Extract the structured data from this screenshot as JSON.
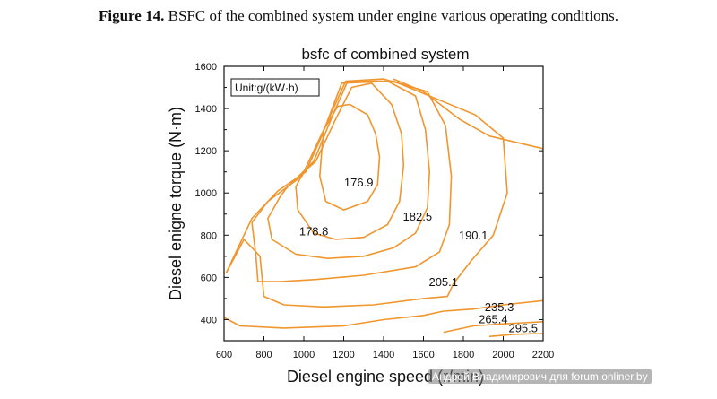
{
  "figure": {
    "caption_label": "Figure 14.",
    "caption_text": " BSFC of the combined system under engine various operating conditions."
  },
  "watermark": "Андрей Владимирович для forum.onliner.by",
  "chart_data": {
    "type": "contour",
    "title": "bsfc of combined system",
    "xlabel": "Diesel engine speed (r/min)",
    "ylabel": "Diesel enigne torque (N·m)",
    "unit_label": "Unit:g/(kW·h)",
    "xlim": [
      600,
      2200
    ],
    "ylim": [
      300,
      1600
    ],
    "xticks": [
      600,
      800,
      1000,
      1200,
      1400,
      1600,
      1800,
      2000,
      2200
    ],
    "yticks": [
      400,
      600,
      800,
      1000,
      1200,
      1400,
      1600
    ],
    "color": "#f0962e",
    "contours": [
      {
        "level": "176.9",
        "label_at": [
          1275,
          1030
        ],
        "points": [
          [
            1100,
            1300
          ],
          [
            1170,
            1410
          ],
          [
            1230,
            1420
          ],
          [
            1320,
            1370
          ],
          [
            1360,
            1280
          ],
          [
            1380,
            1170
          ],
          [
            1370,
            1040
          ],
          [
            1320,
            960
          ],
          [
            1200,
            920
          ],
          [
            1110,
            960
          ],
          [
            1080,
            1080
          ],
          [
            1090,
            1200
          ],
          [
            1100,
            1300
          ]
        ]
      },
      {
        "level": "178.8",
        "label_at": [
          1050,
          800
        ],
        "points": [
          [
            1060,
            1150
          ],
          [
            1160,
            1350
          ],
          [
            1240,
            1500
          ],
          [
            1340,
            1520
          ],
          [
            1440,
            1420
          ],
          [
            1490,
            1280
          ],
          [
            1500,
            1130
          ],
          [
            1480,
            960
          ],
          [
            1420,
            850
          ],
          [
            1300,
            790
          ],
          [
            1160,
            780
          ],
          [
            1050,
            810
          ],
          [
            970,
            920
          ],
          [
            960,
            1030
          ],
          [
            1000,
            1100
          ],
          [
            1060,
            1150
          ]
        ]
      },
      {
        "level": "182.5",
        "label_at": [
          1570,
          870
        ],
        "points": [
          [
            910,
            1020
          ],
          [
            1050,
            1150
          ],
          [
            1150,
            1380
          ],
          [
            1220,
            1530
          ],
          [
            1420,
            1530
          ],
          [
            1560,
            1460
          ],
          [
            1610,
            1300
          ],
          [
            1630,
            1100
          ],
          [
            1620,
            930
          ],
          [
            1560,
            810
          ],
          [
            1450,
            740
          ],
          [
            1300,
            700
          ],
          [
            1120,
            690
          ],
          [
            960,
            710
          ],
          [
            840,
            780
          ],
          [
            820,
            880
          ],
          [
            880,
            980
          ],
          [
            910,
            1020
          ]
        ]
      },
      {
        "level": "190.1",
        "label_at": [
          1850,
          780
        ],
        "points": [
          [
            820,
            960
          ],
          [
            990,
            1080
          ],
          [
            1110,
            1320
          ],
          [
            1210,
            1530
          ],
          [
            1400,
            1540
          ],
          [
            1620,
            1480
          ],
          [
            1710,
            1320
          ],
          [
            1740,
            1080
          ],
          [
            1730,
            850
          ],
          [
            1680,
            720
          ],
          [
            1560,
            650
          ],
          [
            1300,
            610
          ],
          [
            1060,
            590
          ],
          [
            880,
            580
          ],
          [
            770,
            580
          ],
          [
            760,
            700
          ],
          [
            740,
            860
          ],
          [
            820,
            960
          ]
        ]
      },
      {
        "level": "205.1",
        "label_at": [
          1700,
          560
        ],
        "points": [
          [
            610,
            620
          ],
          [
            740,
            880
          ],
          [
            870,
            1010
          ],
          [
            1010,
            1100
          ],
          [
            1090,
            1270
          ],
          [
            1190,
            1520
          ],
          [
            1450,
            1530
          ],
          [
            1860,
            1370
          ],
          [
            2000,
            1260
          ],
          [
            2020,
            1000
          ],
          [
            1950,
            800
          ],
          [
            1840,
            680
          ],
          [
            1750,
            570
          ],
          [
            1720,
            510
          ],
          [
            1600,
            500
          ],
          [
            1350,
            470
          ],
          [
            1100,
            460
          ],
          [
            900,
            470
          ],
          [
            800,
            510
          ],
          [
            780,
            700
          ],
          [
            700,
            780
          ],
          [
            610,
            620
          ]
        ]
      },
      {
        "level": "235.3",
        "label_at": [
          1980,
          440
        ],
        "points": [
          [
            600,
            410
          ],
          [
            680,
            370
          ],
          [
            900,
            360
          ],
          [
            1200,
            370
          ],
          [
            1400,
            400
          ],
          [
            1600,
            420
          ],
          [
            1700,
            440
          ],
          [
            1850,
            450
          ],
          [
            2000,
            470
          ],
          [
            2200,
            490
          ]
        ]
      },
      {
        "level": "265.4",
        "label_at": [
          1950,
          383
        ],
        "points": [
          [
            1700,
            340
          ],
          [
            1850,
            370
          ],
          [
            2000,
            380
          ],
          [
            2100,
            385
          ],
          [
            2200,
            390
          ]
        ]
      },
      {
        "level": "295.5",
        "label_at": [
          2100,
          340
        ],
        "points": [
          [
            1930,
            320
          ],
          [
            2050,
            330
          ],
          [
            2150,
            333
          ],
          [
            2200,
            333
          ]
        ]
      },
      {
        "level": "",
        "label_at": null,
        "points": [
          [
            1450,
            1540
          ],
          [
            1600,
            1480
          ],
          [
            1780,
            1350
          ],
          [
            1930,
            1270
          ],
          [
            2200,
            1210
          ]
        ]
      }
    ]
  }
}
